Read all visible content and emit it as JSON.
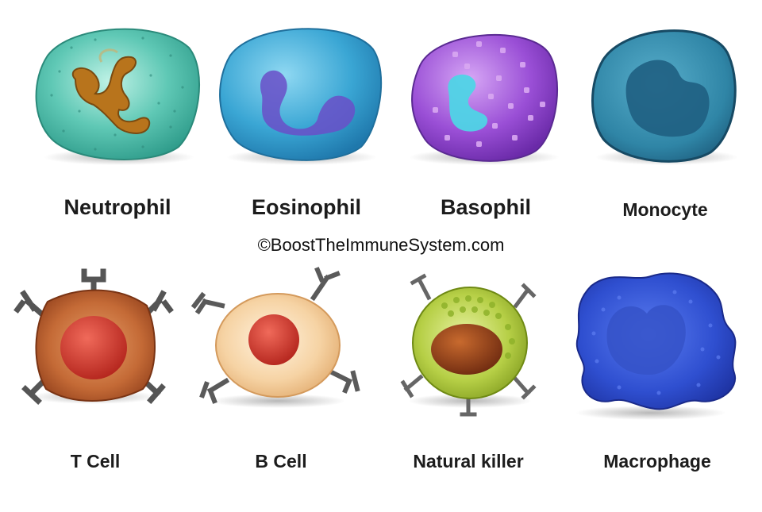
{
  "cells": {
    "neutrophil": "Neutrophil",
    "eosinophil": "Eosinophil",
    "basophil": "Basophil",
    "monocyte": "Monocyte",
    "t_cell": "T Cell",
    "b_cell": "B Cell",
    "natural_killer": "Natural killer",
    "macrophage": "Macrophage"
  },
  "credit": "©BoostTheImmuneSystem.com",
  "colors": {
    "neutrophil": "#5cc7b4",
    "eosinophil": "#3aa6d4",
    "basophil": "#9a4fd6",
    "monocyte": "#2f85a6",
    "t_cell": "#b5562a",
    "b_cell": "#f2cfa0",
    "natural_killer": "#a6c23a",
    "macrophage": "#2f4fd0"
  }
}
